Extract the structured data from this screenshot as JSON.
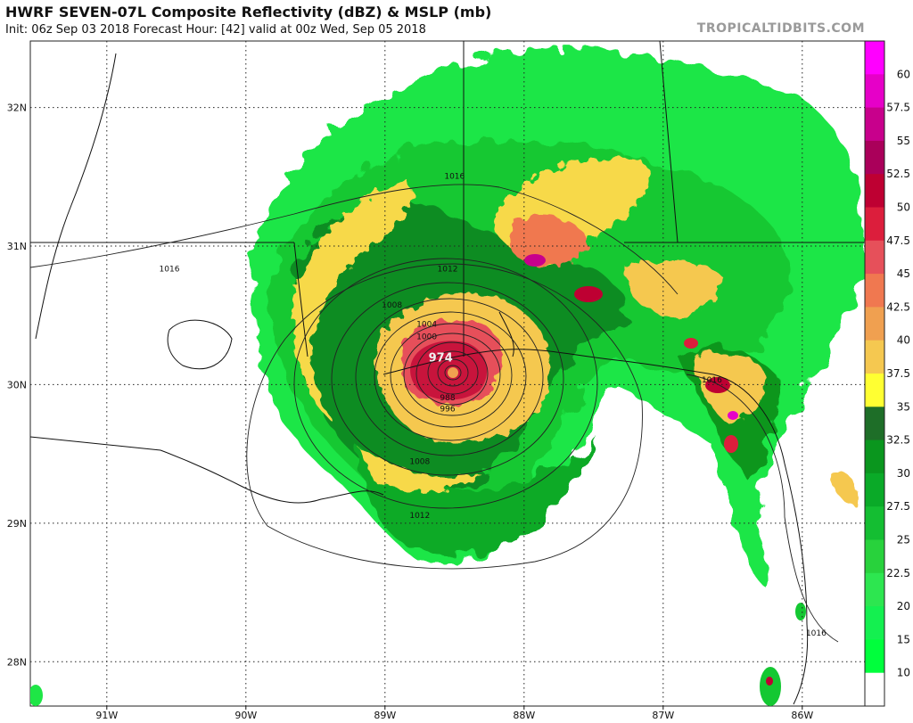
{
  "header": {
    "title": "HWRF SEVEN-07L Composite Reflectivity (dBZ) & MSLP (mb)",
    "subtitle": "Init: 06z Sep 03 2018   Forecast Hour: [42]   valid at 00z Wed, Sep 05 2018",
    "watermark": "TROPICALTIDBITS.COM"
  },
  "map": {
    "lon_range": [
      -91.55,
      -85.55
    ],
    "lat_range": [
      27.68,
      32.48
    ],
    "lon_labels": [
      "91W",
      "90W",
      "89W",
      "88W",
      "87W",
      "86W"
    ],
    "lat_labels": [
      "32N",
      "31N",
      "30N",
      "29N",
      "28N"
    ],
    "storm_center": {
      "lon": -88.55,
      "lat": 30.07
    },
    "pressure_labels": [
      {
        "text": "1016",
        "lon": -90.55,
        "lat": 30.83
      },
      {
        "text": "1016",
        "lon": -88.5,
        "lat": 31.5
      },
      {
        "text": "1012",
        "lon": -88.55,
        "lat": 30.83
      },
      {
        "text": "1008",
        "lon": -88.95,
        "lat": 30.57
      },
      {
        "text": "1004",
        "lon": -88.7,
        "lat": 30.43
      },
      {
        "text": "1000",
        "lon": -88.7,
        "lat": 30.34
      },
      {
        "text": "974",
        "lon": -88.6,
        "lat": 30.18
      },
      {
        "text": "988",
        "lon": -88.55,
        "lat": 29.9
      },
      {
        "text": "996",
        "lon": -88.55,
        "lat": 29.82
      },
      {
        "text": "1008",
        "lon": -88.75,
        "lat": 29.44
      },
      {
        "text": "1012",
        "lon": -88.75,
        "lat": 29.05
      },
      {
        "text": "1016",
        "lon": -86.65,
        "lat": 30.03
      },
      {
        "text": "1016",
        "lon": -85.9,
        "lat": 28.2
      }
    ]
  },
  "colorbar": {
    "labels": [
      "60",
      "57.5",
      "55",
      "52.5",
      "50",
      "47.5",
      "45",
      "42.5",
      "40",
      "37.5",
      "35",
      "32.5",
      "30",
      "27.5",
      "25",
      "22.5",
      "20",
      "15",
      "10"
    ],
    "colors": [
      "#ff00ff",
      "#e600c8",
      "#c8008c",
      "#aa005a",
      "#be0032",
      "#dc1e3c",
      "#e6505a",
      "#f07850",
      "#f0a050",
      "#f5c850",
      "#ffff32",
      "#1e6e28",
      "#0a961e",
      "#0aaa28",
      "#14be32",
      "#28d23c",
      "#2de650",
      "#14f050",
      "#00ff3c",
      "#ffffff"
    ],
    "levels_note_values": [
      10,
      15,
      20,
      22.5,
      25,
      27.5,
      30,
      32.5,
      35,
      37.5,
      40,
      42.5,
      45,
      47.5,
      50,
      52.5,
      55,
      57.5,
      60
    ]
  }
}
